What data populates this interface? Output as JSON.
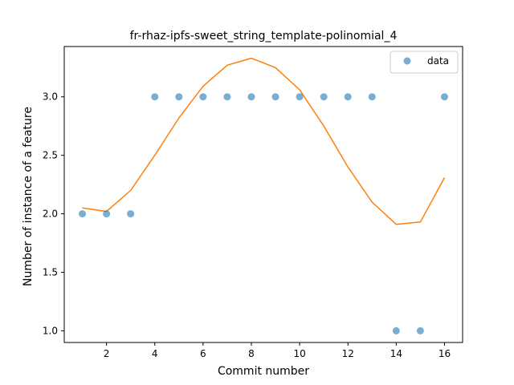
{
  "chart_data": {
    "type": "scatter",
    "title": "fr-rhaz-ipfs-sweet_string_template-polinomial_4",
    "xlabel": "Commit number",
    "ylabel": "Number of instance of a feature",
    "xlim": [
      0.25,
      16.75
    ],
    "ylim": [
      0.9,
      3.43
    ],
    "x_ticks": [
      2,
      4,
      6,
      8,
      10,
      12,
      14,
      16
    ],
    "x_tick_labels": [
      "2",
      "4",
      "6",
      "8",
      "10",
      "12",
      "14",
      "16"
    ],
    "y_ticks": [
      1.0,
      1.5,
      2.0,
      2.5,
      3.0
    ],
    "y_tick_labels": [
      "1.0",
      "1.5",
      "2.0",
      "2.5",
      "3.0"
    ],
    "grid": false,
    "legend": {
      "position": "top-right",
      "entries": [
        "data"
      ]
    },
    "series": [
      {
        "name": "data",
        "kind": "scatter",
        "color": "#1f77b4",
        "x": [
          1,
          2,
          3,
          4,
          5,
          6,
          7,
          8,
          9,
          10,
          11,
          12,
          13,
          14,
          15,
          16
        ],
        "y": [
          2,
          2,
          2,
          3,
          3,
          3,
          3,
          3,
          3,
          3,
          3,
          3,
          3,
          1,
          1,
          3
        ]
      },
      {
        "kind": "line",
        "color": "#ff7f0e",
        "x": [
          1,
          2,
          3,
          4,
          5,
          6,
          7,
          8,
          9,
          10,
          11,
          12,
          13,
          14,
          15,
          16
        ],
        "y": [
          2.05,
          2.02,
          2.2,
          2.5,
          2.82,
          3.09,
          3.27,
          3.33,
          3.25,
          3.06,
          2.75,
          2.4,
          2.1,
          1.91,
          1.93,
          2.31
        ]
      }
    ]
  }
}
